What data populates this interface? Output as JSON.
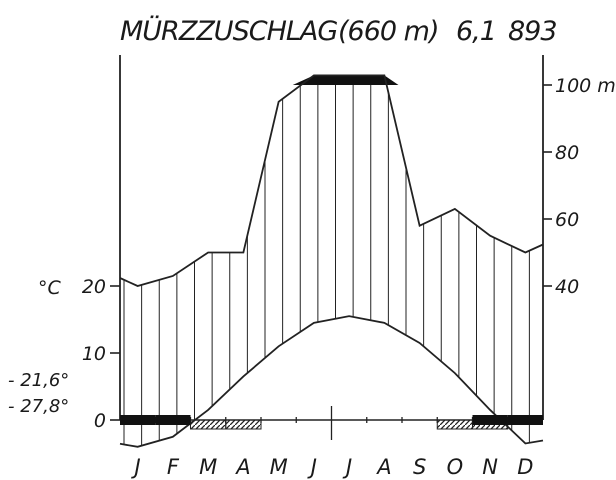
{
  "chart_data": {
    "type": "climate-diagram",
    "title": {
      "station": "MÜRZZUSCHLAG",
      "elevation": "(660 m)",
      "mean_temperature": "6,1",
      "annual_precipitation": "893"
    },
    "months": [
      "J",
      "F",
      "M",
      "A",
      "M",
      "J",
      "J",
      "A",
      "S",
      "O",
      "N",
      "D"
    ],
    "temperature_c": [
      -4.0,
      -2.5,
      1.5,
      6.5,
      11.0,
      14.5,
      15.5,
      14.5,
      11.5,
      7.0,
      1.5,
      -3.5
    ],
    "precipitation_mm": [
      40,
      43,
      50,
      50,
      95,
      102,
      102,
      102,
      58,
      63,
      55,
      50
    ],
    "left_axis": {
      "unit_label": "°C",
      "ticks": [
        0,
        10,
        20
      ],
      "tick_labels": [
        "0",
        "10",
        "20"
      ],
      "range": [
        -5,
        30
      ]
    },
    "right_axis": {
      "unit_label": "mm",
      "ticks": [
        40,
        60,
        80,
        100
      ],
      "tick_labels": [
        "40",
        "60",
        "80",
        "100 mm"
      ],
      "range": [
        30,
        110
      ],
      "above_100_scale": "compressed"
    },
    "extremes": {
      "mean_daily_min_coldest_month": "- 21,6°",
      "absolute_min": "- 27,8°"
    },
    "frost": {
      "months_mean_daily_min_below_zero": [
        "J",
        "F",
        "N",
        "D"
      ],
      "months_absolute_min_below_zero": [
        "M",
        "A",
        "O",
        "N"
      ]
    }
  }
}
